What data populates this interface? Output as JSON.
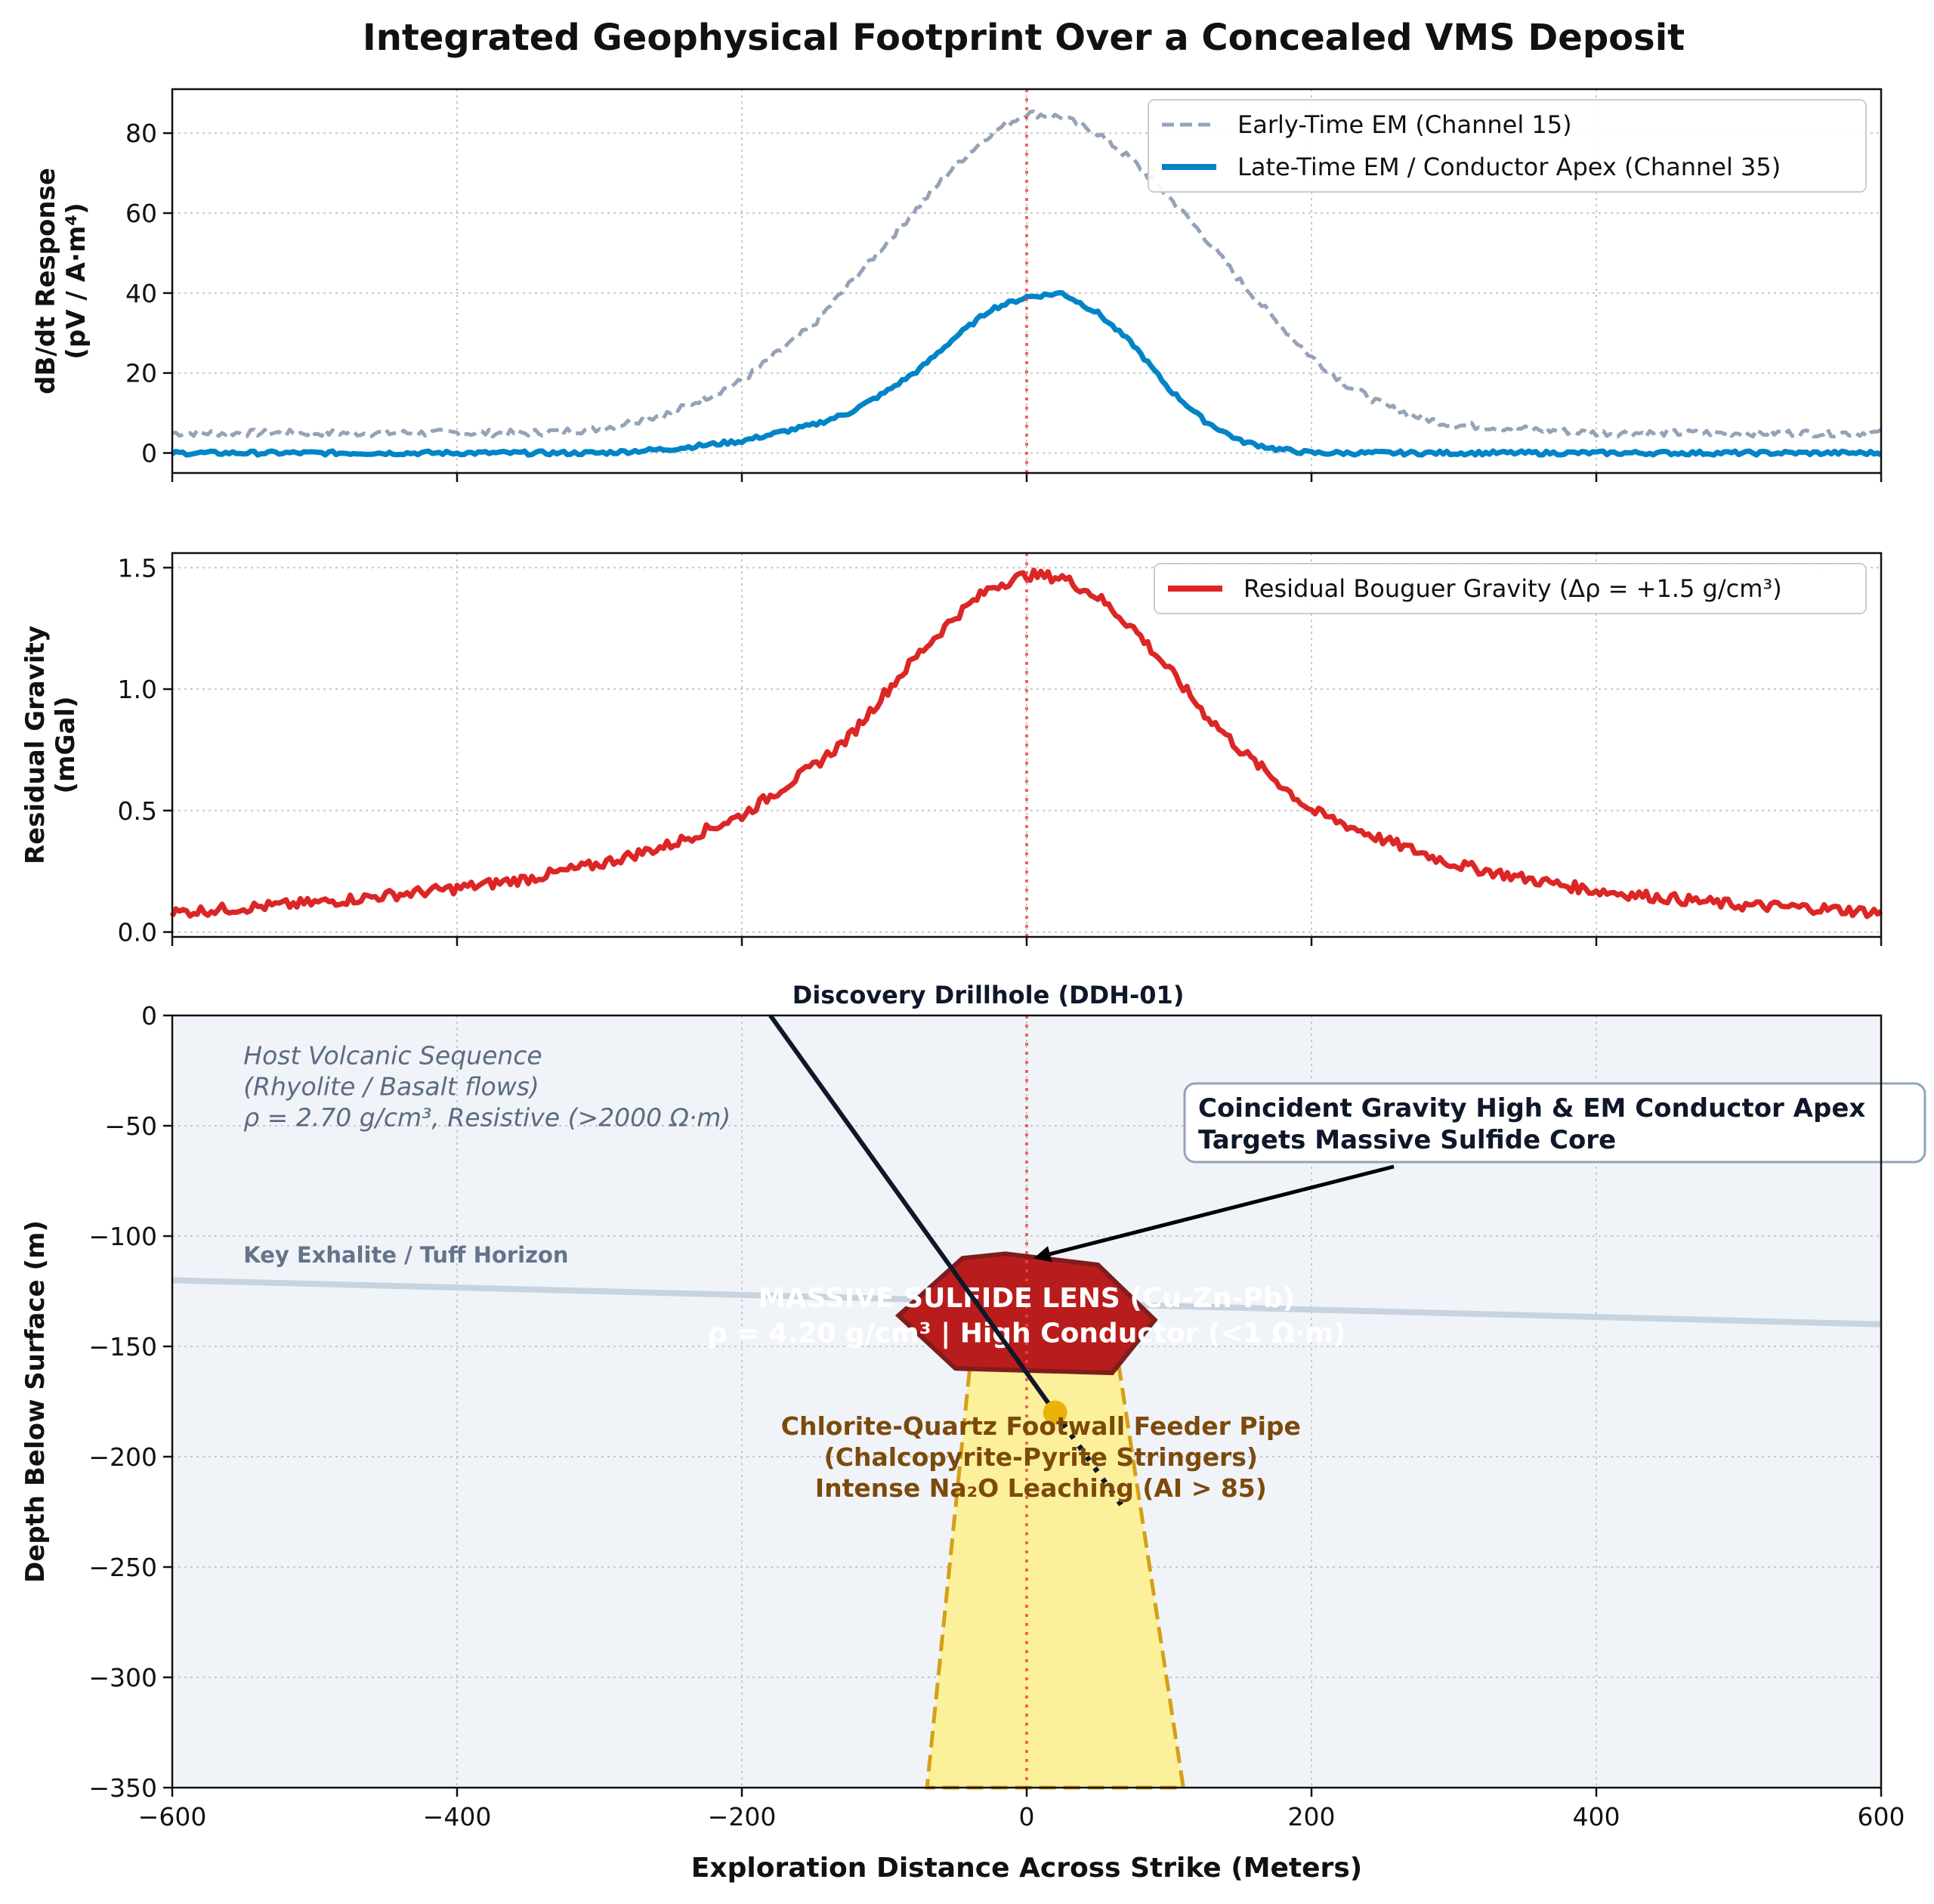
{
  "title": "Integrated Geophysical Footprint Over a Concealed VMS Deposit",
  "xlabel": "Exploration Distance Across Strike (Meters)",
  "colors": {
    "early_em": "#94a3b8",
    "late_em": "#0284c7",
    "gravity": "#dc2626",
    "marker_line": "#ef4444",
    "section_bg": "#f0f4f9",
    "horizon": "#c8d3e0",
    "lens_fill": "#b91c1c",
    "lens_edge": "#7f1d1d",
    "feeder_fill": "#fdf09b",
    "feeder_edge": "#d4a017",
    "drillhole": "#0f172a",
    "intercept": "#eab308",
    "feeder_text": "#7c4a0b",
    "host_text": "#5b6b80",
    "callout_edge": "#94a3b8"
  },
  "chart_data": [
    {
      "type": "line",
      "ylabel_line1": "dB/dt Response",
      "ylabel_line2": "(pV / A·m⁴)",
      "xlim": [
        -600,
        600
      ],
      "ylim": [
        -5,
        91
      ],
      "xticks": [
        -600,
        -400,
        -200,
        0,
        200,
        400,
        600
      ],
      "yticks": [
        0,
        20,
        40,
        60,
        80
      ],
      "ytick_labels": [
        "0",
        "20",
        "40",
        "60",
        "80"
      ],
      "grid": true,
      "legend_position": "top-right",
      "series": [
        {
          "name": "Early-Time EM (Channel 15)",
          "style": "dashed",
          "x": [
            -600,
            -550,
            -500,
            -450,
            -400,
            -350,
            -300,
            -250,
            -200,
            -175,
            -150,
            -125,
            -100,
            -75,
            -50,
            -25,
            0,
            25,
            50,
            75,
            100,
            125,
            150,
            175,
            200,
            225,
            250,
            275,
            300,
            350,
            400,
            450,
            500,
            550,
            600
          ],
          "y": [
            5,
            5,
            5,
            5,
            5,
            5,
            6,
            10,
            18,
            25,
            32,
            42,
            52,
            62,
            72,
            80,
            85,
            84,
            80,
            73,
            64,
            54,
            43,
            33,
            24,
            17,
            12,
            9,
            7,
            6,
            5,
            5,
            5,
            5,
            5
          ]
        },
        {
          "name": "Late-Time EM / Conductor Apex (Channel 35)",
          "style": "solid",
          "x": [
            -600,
            -500,
            -400,
            -300,
            -250,
            -200,
            -150,
            -125,
            -100,
            -75,
            -50,
            -25,
            0,
            25,
            50,
            75,
            100,
            125,
            150,
            175,
            200,
            250,
            300,
            400,
            500,
            600
          ],
          "y": [
            0,
            0,
            0,
            0,
            1,
            3,
            7,
            10,
            15,
            21,
            29,
            36,
            39,
            40,
            35,
            27,
            16,
            8,
            3,
            1,
            0,
            0,
            0,
            0,
            0,
            0
          ]
        }
      ]
    },
    {
      "type": "line",
      "ylabel_line1": "Residual Gravity",
      "ylabel_line2": "(mGal)",
      "xlim": [
        -600,
        600
      ],
      "ylim": [
        -0.02,
        1.56
      ],
      "xticks": [
        -600,
        -400,
        -200,
        0,
        200,
        400,
        600
      ],
      "yticks": [
        0.0,
        0.5,
        1.0,
        1.5
      ],
      "ytick_labels": [
        "0.0",
        "0.5",
        "1.0",
        "1.5"
      ],
      "grid": true,
      "legend_position": "top-right",
      "series": [
        {
          "name": "Residual Bouguer Gravity (Δρ = +1.5 g/cm³)",
          "style": "solid",
          "x": [
            -600,
            -550,
            -500,
            -450,
            -400,
            -350,
            -300,
            -250,
            -200,
            -150,
            -125,
            -100,
            -75,
            -50,
            -25,
            0,
            25,
            50,
            75,
            100,
            125,
            150,
            200,
            250,
            300,
            350,
            400,
            450,
            500,
            550,
            600
          ],
          "y": [
            0.08,
            0.1,
            0.12,
            0.15,
            0.18,
            0.22,
            0.28,
            0.36,
            0.48,
            0.68,
            0.8,
            0.98,
            1.15,
            1.3,
            1.42,
            1.47,
            1.46,
            1.38,
            1.25,
            1.08,
            0.9,
            0.75,
            0.5,
            0.38,
            0.28,
            0.22,
            0.17,
            0.14,
            0.11,
            0.1,
            0.08
          ]
        }
      ]
    },
    {
      "type": "cross-section",
      "ylabel": "Depth Below Surface (m)",
      "xlim": [
        -600,
        600
      ],
      "ylim": [
        -350,
        0
      ],
      "xticks": [
        -600,
        -400,
        -200,
        0,
        200,
        400,
        600
      ],
      "xtick_labels": [
        "−600",
        "−400",
        "−200",
        "0",
        "200",
        "400",
        "600"
      ],
      "yticks": [
        0,
        -50,
        -100,
        -150,
        -200,
        -250,
        -300,
        -350
      ],
      "ytick_labels": [
        "0",
        "−50",
        "−100",
        "−150",
        "−200",
        "−250",
        "−300",
        "−350"
      ],
      "grid": true,
      "horizon": {
        "x": [
          -600,
          600
        ],
        "y": [
          -120,
          -140
        ],
        "label": "Key Exhalite / Tuff Horizon"
      },
      "feeder_pipe": {
        "x": [
          -40,
          65,
          110,
          -70
        ],
        "y": [
          -160,
          -160,
          -350,
          -350
        ]
      },
      "sulfide_lens": {
        "x": [
          -45,
          -15,
          50,
          90,
          60,
          -50,
          -90
        ],
        "y": [
          -110,
          -108,
          -113,
          -138,
          -162,
          -160,
          -136
        ]
      },
      "drillhole": {
        "x": [
          -180,
          20
        ],
        "y": [
          0,
          -180
        ],
        "projected_x": [
          20,
          70
        ],
        "projected_y": [
          -180,
          -225
        ],
        "intercept": [
          20,
          -180
        ],
        "label": "Discovery Drillhole (DDH-01)"
      },
      "host_text": [
        "Host Volcanic Sequence",
        "(Rhyolite / Basalt flows)",
        "ρ = 2.70 g/cm³, Resistive (>2000 Ω·m)"
      ],
      "lens_text": [
        "MASSIVE SULFIDE LENS (Cu-Zn-Pb)",
        "ρ = 4.20 g/cm³ | High Conductor (<1 Ω·m)"
      ],
      "feeder_text": [
        "Chlorite-Quartz Footwall Feeder Pipe",
        "(Chalcopyrite-Pyrite Stringers)",
        "Intense Na₂O Leaching (AI > 85)"
      ],
      "callout_text": [
        "Coincident Gravity High & EM Conductor Apex",
        "Targets Massive Sulfide Core"
      ],
      "callout_arrow_target": [
        5,
        -110
      ]
    }
  ]
}
